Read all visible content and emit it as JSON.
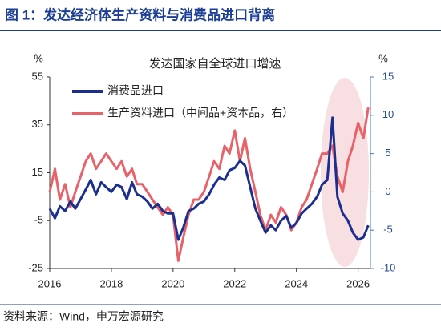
{
  "header": {
    "title": "图 1：发达经济体生产资料与消费品进口背离"
  },
  "chart_data": {
    "type": "line",
    "title": "发达国家自全球进口增速",
    "y_unit": "%",
    "y2_unit": "%",
    "x": [
      2016,
      2016.17,
      2016.33,
      2016.5,
      2016.67,
      2016.83,
      2017,
      2017.17,
      2017.33,
      2017.5,
      2017.67,
      2017.83,
      2018,
      2018.17,
      2018.33,
      2018.5,
      2018.67,
      2018.83,
      2019,
      2019.17,
      2019.33,
      2019.5,
      2019.67,
      2019.83,
      2020,
      2020.17,
      2020.33,
      2020.5,
      2020.67,
      2020.83,
      2021,
      2021.17,
      2021.33,
      2021.5,
      2021.67,
      2021.83,
      2022,
      2022.17,
      2022.33,
      2022.5,
      2022.67,
      2022.83,
      2023,
      2023.17,
      2023.33,
      2023.5,
      2023.67,
      2023.83,
      2024,
      2024.17,
      2024.33,
      2024.5,
      2024.67,
      2024.83,
      2025,
      2025.17,
      2025.33,
      2025.5,
      2025.67,
      2025.83,
      2026,
      2026.17,
      2026.33
    ],
    "xlim": [
      2016,
      2026.4
    ],
    "xticks": [
      2016,
      2018,
      2020,
      2022,
      2024,
      2026
    ],
    "ylim": [
      -25,
      55
    ],
    "yticks": [
      55,
      35,
      15,
      -5,
      -25
    ],
    "y2lim": [
      -10,
      15
    ],
    "y2ticks": [
      15,
      10,
      5,
      0,
      -5,
      -10
    ],
    "series": [
      {
        "name": "消费品进口",
        "color": "#1c2f8f",
        "values": [
          0,
          -4,
          1,
          -1,
          3,
          0,
          4,
          8,
          12,
          6,
          11,
          9,
          7,
          10,
          9,
          4,
          11,
          6,
          5,
          3,
          0,
          2,
          -1,
          -2,
          -2,
          -13,
          -8,
          -1,
          0,
          2,
          3,
          6,
          10,
          13,
          12,
          16,
          17,
          20,
          18,
          9,
          0,
          -5,
          -10,
          -7,
          -9,
          -5,
          -3,
          -8,
          -6,
          -2,
          0,
          2,
          5,
          10,
          12,
          38,
          5,
          -2,
          -5,
          -10,
          -13,
          -12,
          -7
        ]
      },
      {
        "name": "生产资料进口（中间品+资本品，右）",
        "color": "#e8626a",
        "axis": "y2",
        "values": [
          0,
          3,
          -1,
          1,
          -2,
          0,
          2,
          4,
          5,
          3,
          4,
          5,
          4,
          3,
          4,
          2,
          3,
          1,
          1,
          0,
          -1,
          -2,
          -3,
          -2,
          -3,
          -9,
          -6,
          -3,
          -1,
          -1,
          0,
          2,
          4,
          3,
          6,
          5,
          8,
          4,
          7,
          3,
          0,
          -3,
          -5,
          -3,
          -4,
          -2,
          -3,
          -5,
          -4,
          -2,
          -1,
          1,
          3,
          5,
          5,
          6,
          2,
          0,
          4,
          6,
          9,
          7,
          11
        ]
      }
    ]
  },
  "source": "资料来源：Wind，申万宏源研究"
}
